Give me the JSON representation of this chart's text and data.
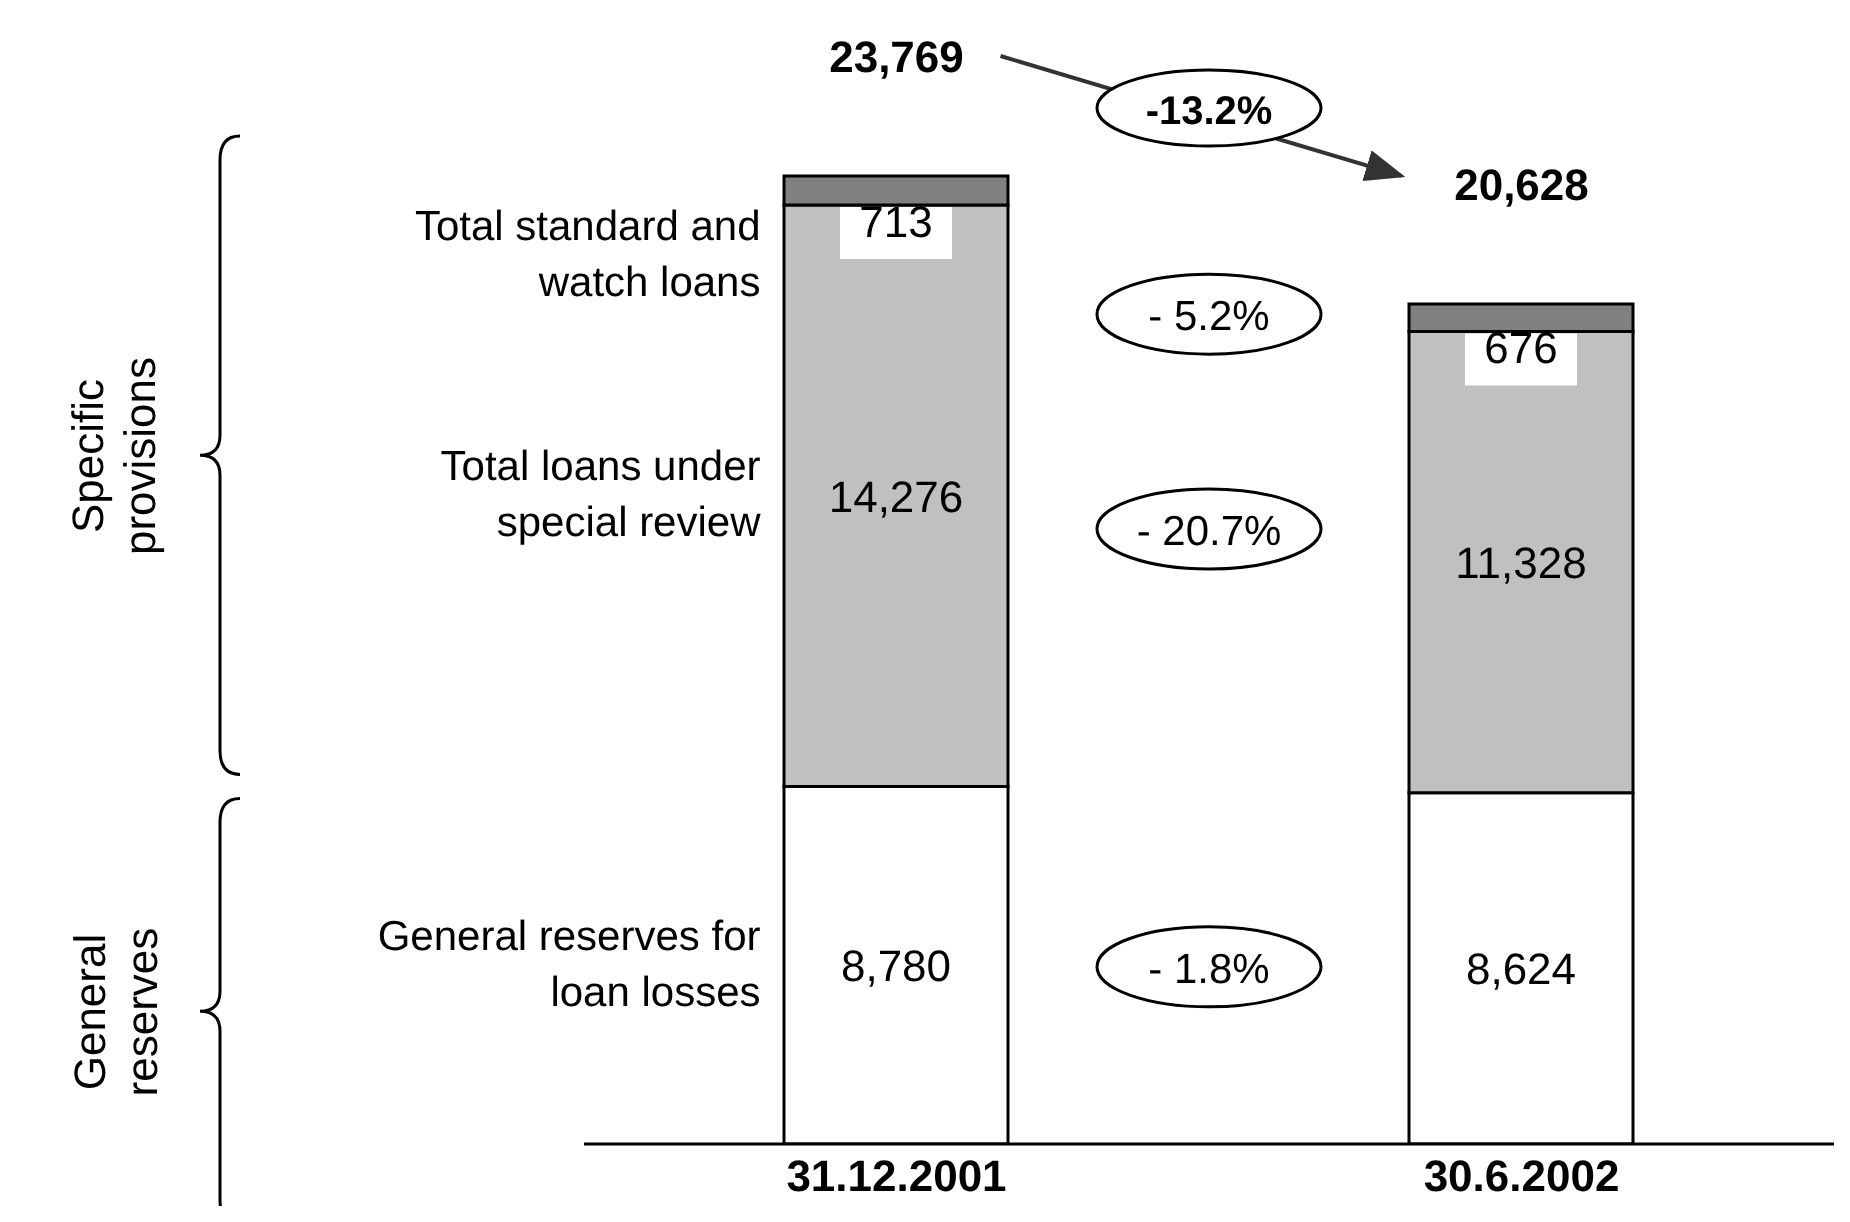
{
  "chart_data": {
    "type": "bar",
    "stacked": true,
    "categories": [
      "31.12.2001",
      "30.6.2002"
    ],
    "series": [
      {
        "name": "General reserves for loan losses",
        "color": "#ffffff",
        "values": [
          8780,
          8624
        ],
        "value_labels": [
          "8,780",
          "8,624"
        ]
      },
      {
        "name": "Total loans under special review",
        "color": "#c0c0c0",
        "values": [
          14276,
          11328
        ],
        "value_labels": [
          "14,276",
          "11,328"
        ]
      },
      {
        "name": "Total standard and watch loans",
        "color": "#808080",
        "values": [
          713,
          676
        ],
        "value_labels": [
          "713",
          "676"
        ]
      }
    ],
    "totals": [
      "23,769",
      "20,628"
    ],
    "annotations": [
      "-13.2%",
      "- 5.2%",
      "- 20.7%",
      "- 1.8%",
      "Specific provisions",
      "General reserves"
    ],
    "tick_labels": "x"
  }
}
